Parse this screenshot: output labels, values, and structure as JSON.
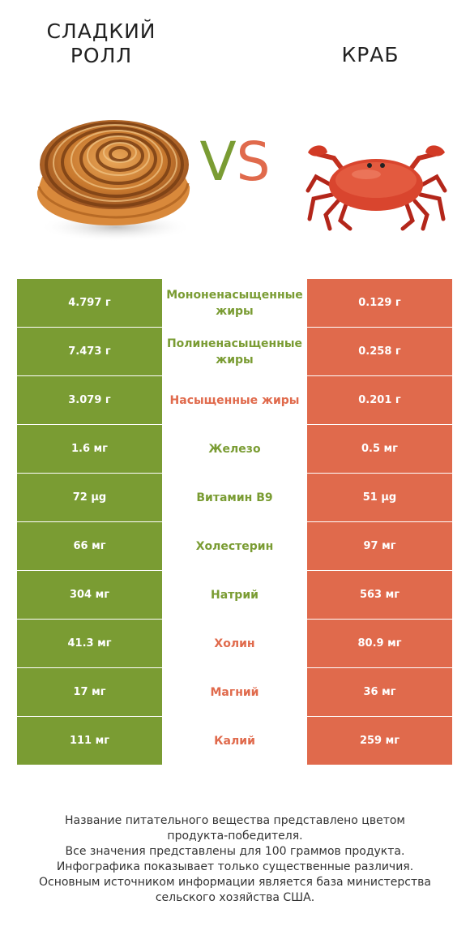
{
  "header": {
    "left_title": "СЛАДКИЙ РОЛЛ",
    "right_title": "КРАБ",
    "vs_v": "V",
    "vs_s": "S"
  },
  "colors": {
    "left_winner": "#7a9c33",
    "right_winner": "#e06a4c"
  },
  "rows": [
    {
      "left": "4.797 г",
      "nutrient": "Мононенасыщенные жиры",
      "right": "0.129 г",
      "winner": "left"
    },
    {
      "left": "7.473 г",
      "nutrient": "Полиненасыщенные жиры",
      "right": "0.258 г",
      "winner": "left"
    },
    {
      "left": "3.079 г",
      "nutrient": "Насыщенные жиры",
      "right": "0.201 г",
      "winner": "right"
    },
    {
      "left": "1.6 мг",
      "nutrient": "Железо",
      "right": "0.5 мг",
      "winner": "left"
    },
    {
      "left": "72 µg",
      "nutrient": "Витамин B9",
      "right": "51 µg",
      "winner": "left"
    },
    {
      "left": "66 мг",
      "nutrient": "Холестерин",
      "right": "97 мг",
      "winner": "left"
    },
    {
      "left": "304 мг",
      "nutrient": "Натрий",
      "right": "563 мг",
      "winner": "left"
    },
    {
      "left": "41.3 мг",
      "nutrient": "Холин",
      "right": "80.9 мг",
      "winner": "right"
    },
    {
      "left": "17 мг",
      "nutrient": "Магний",
      "right": "36 мг",
      "winner": "right"
    },
    {
      "left": "111 мг",
      "nutrient": "Калий",
      "right": "259 мг",
      "winner": "right"
    }
  ],
  "footnote": [
    "Название питательного вещества представлено цветом",
    "продукта-победителя.",
    "Все значения представлены для 100 граммов продукта.",
    "Инфографика показывает только существенные различия.",
    "Основным источником информации является база министерства",
    "сельского хозяйства США."
  ]
}
